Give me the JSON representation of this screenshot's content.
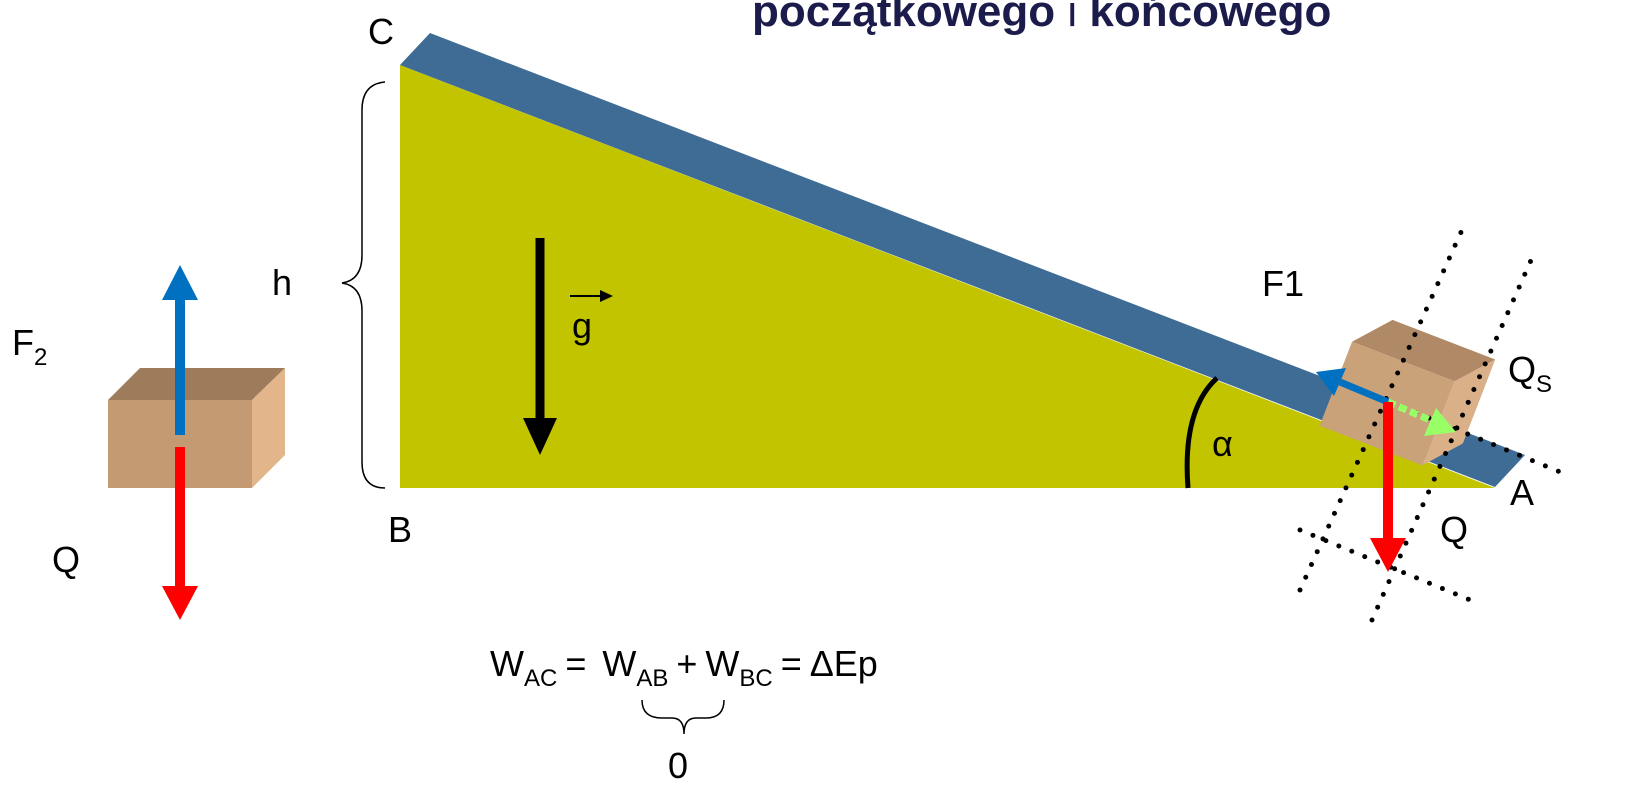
{
  "title": {
    "start": "początkowego",
    "mid": "i",
    "end": "końcowego"
  },
  "labels": {
    "C": "C",
    "B": "B",
    "A": "A",
    "h": "h",
    "g": "g",
    "alpha": "α",
    "F1": "F1",
    "Qs": {
      "base": "Q",
      "sub": "S"
    },
    "Q_right": "Q",
    "F2": {
      "base": "F",
      "sub": "2"
    },
    "Q_left": "Q"
  },
  "formula": {
    "w_ac": {
      "base": "W",
      "sub": "AC"
    },
    "eq1": "=",
    "w_ab": {
      "base": "W",
      "sub": "AB"
    },
    "plus": "+",
    "w_bc": {
      "base": "W",
      "sub": "BC"
    },
    "eq2": "=",
    "rhs": "ΔEp",
    "under": "0"
  }
}
